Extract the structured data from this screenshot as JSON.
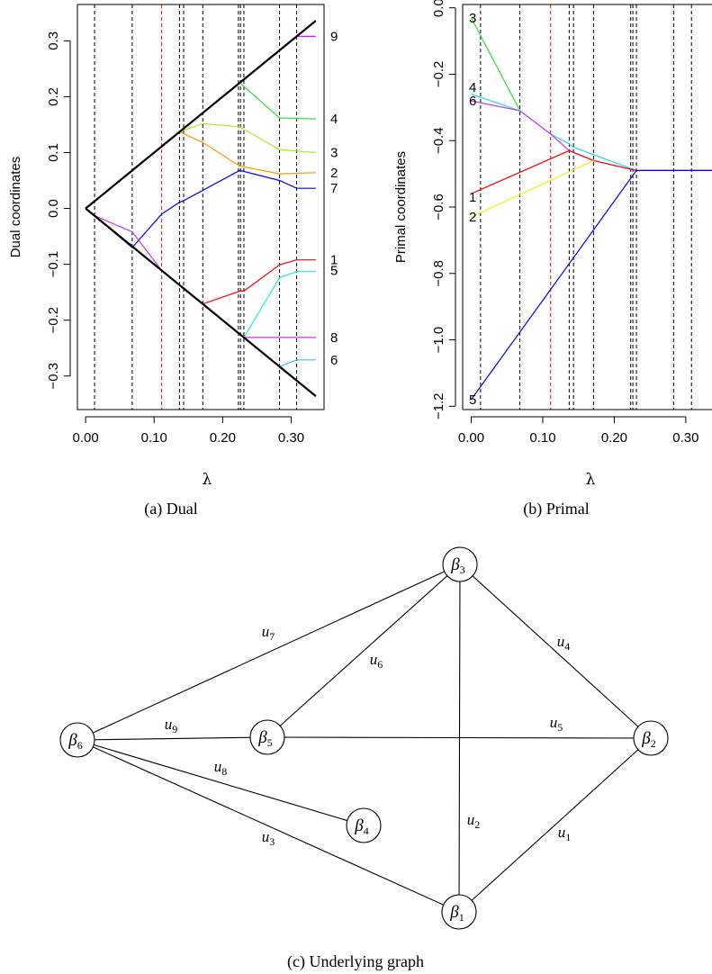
{
  "chart_data": [
    {
      "type": "line",
      "caption": "(a)  Dual",
      "xlabel": "λ",
      "ylabel": "Dual coordinates",
      "xlim": [
        -0.012,
        0.348
      ],
      "ylim": [
        -0.36,
        0.365
      ],
      "xticks": [
        0.0,
        0.1,
        0.2,
        0.3
      ],
      "xtick_labels": [
        "0.00",
        "0.10",
        "0.20",
        "0.30"
      ],
      "yticks": [
        -0.3,
        -0.2,
        -0.1,
        0.0,
        0.1,
        0.2,
        0.3
      ],
      "ytick_labels": [
        "−0.3",
        "−0.2",
        "−0.1",
        "0.0",
        "0.1",
        "0.2",
        "0.3"
      ],
      "vlines": [
        {
          "x": 0.013,
          "color": "#000000"
        },
        {
          "x": 0.068,
          "color": "#000000"
        },
        {
          "x": 0.111,
          "color": "#ff0000"
        },
        {
          "x": 0.137,
          "color": "#000000"
        },
        {
          "x": 0.143,
          "color": "#000000"
        },
        {
          "x": 0.171,
          "color": "#000000"
        },
        {
          "x": 0.223,
          "color": "#000000"
        },
        {
          "x": 0.226,
          "color": "#000000"
        },
        {
          "x": 0.231,
          "color": "#000000"
        },
        {
          "x": 0.283,
          "color": "#000000"
        },
        {
          "x": 0.308,
          "color": "#000000"
        }
      ],
      "series": [
        {
          "label": "9",
          "color": "#ff00ff",
          "x": [
            0,
            0.225,
            0.308,
            0.336
          ],
          "y": [
            0,
            0.225,
            0.308,
            0.308
          ]
        },
        {
          "label": "4",
          "color": "#33dd33",
          "x": [
            0,
            0.225,
            0.283,
            0.336
          ],
          "y": [
            0,
            0.225,
            0.162,
            0.16
          ]
        },
        {
          "label": "3",
          "color": "#aaee22",
          "x": [
            0,
            0.137,
            0.171,
            0.225,
            0.283,
            0.336
          ],
          "y": [
            0,
            0.137,
            0.152,
            0.146,
            0.105,
            0.1
          ]
        },
        {
          "label": "2",
          "color": "#ff9900",
          "x": [
            0,
            0.137,
            0.171,
            0.225,
            0.283,
            0.336
          ],
          "y": [
            0,
            0.137,
            0.118,
            0.076,
            0.062,
            0.064
          ]
        },
        {
          "label": "7",
          "color": "#0000ff",
          "x": [
            0,
            0.068,
            0.111,
            0.137,
            0.143,
            0.225,
            0.283,
            0.308,
            0.336
          ],
          "y": [
            0,
            -0.07,
            -0.01,
            0.011,
            0.014,
            0.068,
            0.05,
            0.036,
            0.036
          ]
        },
        {
          "label": "1",
          "color": "#ff0000",
          "x": [
            0,
            0.171,
            0.225,
            0.231,
            0.283,
            0.308,
            0.336
          ],
          "y": [
            0,
            -0.171,
            -0.148,
            -0.148,
            -0.101,
            -0.092,
            -0.092
          ]
        },
        {
          "label": "5",
          "color": "#22eecc",
          "x": [
            0,
            0.231,
            0.283,
            0.308,
            0.336
          ],
          "y": [
            0,
            -0.231,
            -0.124,
            -0.113,
            -0.113
          ]
        },
        {
          "label": "8",
          "color": "#cc33ff",
          "x": [
            0,
            0.013,
            0.068,
            0.111,
            0.231,
            0.336
          ],
          "y": [
            0,
            -0.013,
            -0.042,
            -0.111,
            -0.231,
            -0.231
          ]
        },
        {
          "label": "6",
          "color": "#33ccdd",
          "x": [
            0,
            0.283,
            0.308,
            0.336
          ],
          "y": [
            0,
            -0.283,
            -0.271,
            -0.271
          ]
        },
        {
          "label": "",
          "color": "#000000",
          "width": 2.2,
          "x": [
            0,
            0.336
          ],
          "y": [
            0,
            0.336
          ]
        },
        {
          "label": "",
          "color": "#000000",
          "width": 2.2,
          "x": [
            0,
            0.336
          ],
          "y": [
            0,
            -0.336
          ]
        }
      ],
      "end_labels": [
        {
          "text": "9",
          "y": 0.308
        },
        {
          "text": "4",
          "y": 0.16
        },
        {
          "text": "3",
          "y": 0.1
        },
        {
          "text": "2",
          "y": 0.064
        },
        {
          "text": "7",
          "y": 0.036
        },
        {
          "text": "1",
          "y": -0.092
        },
        {
          "text": "5",
          "y": -0.111
        },
        {
          "text": "8",
          "y": -0.231
        },
        {
          "text": "6",
          "y": -0.271
        }
      ]
    },
    {
      "type": "line",
      "caption": "(b)  Primal",
      "xlabel": "λ",
      "ylabel": "Primal coordinates",
      "xlim": [
        -0.012,
        0.348
      ],
      "ylim": [
        -1.21,
        0.01
      ],
      "xticks": [
        0.0,
        0.1,
        0.2,
        0.3
      ],
      "xtick_labels": [
        "0.00",
        "0.10",
        "0.20",
        "0.30"
      ],
      "yticks": [
        -1.2,
        -1.0,
        -0.8,
        -0.6,
        -0.4,
        -0.2,
        0.0
      ],
      "ytick_labels": [
        "−1.2",
        "−1.0",
        "−0.8",
        "−0.6",
        "−0.4",
        "−0.2",
        "0.0"
      ],
      "vlines": [
        {
          "x": 0.013,
          "color": "#000000"
        },
        {
          "x": 0.068,
          "color": "#000000"
        },
        {
          "x": 0.111,
          "color": "#ff0000"
        },
        {
          "x": 0.137,
          "color": "#000000"
        },
        {
          "x": 0.143,
          "color": "#000000"
        },
        {
          "x": 0.171,
          "color": "#000000"
        },
        {
          "x": 0.223,
          "color": "#000000"
        },
        {
          "x": 0.226,
          "color": "#000000"
        },
        {
          "x": 0.231,
          "color": "#000000"
        },
        {
          "x": 0.283,
          "color": "#000000"
        },
        {
          "x": 0.308,
          "color": "#000000"
        }
      ],
      "series": [
        {
          "label": "3",
          "color": "#33dd33",
          "x": [
            0,
            0.068
          ],
          "y": [
            -0.03,
            -0.31
          ]
        },
        {
          "label": "4",
          "color": "#22dddd",
          "x": [
            0,
            0.068,
            0.111,
            0.137,
            0.143,
            0.231
          ],
          "y": [
            -0.26,
            -0.31,
            -0.38,
            -0.41,
            -0.42,
            -0.49
          ]
        },
        {
          "label": "6",
          "color": "#cc33ff",
          "x": [
            0,
            0.068,
            0.111,
            0.137,
            0.171,
            0.231,
            0.37
          ],
          "y": [
            -0.28,
            -0.31,
            -0.38,
            -0.43,
            -0.46,
            -0.49,
            -0.49
          ]
        },
        {
          "label": "1",
          "color": "#ff0000",
          "x": [
            0,
            0.137,
            0.171,
            0.231
          ],
          "y": [
            -0.56,
            -0.43,
            -0.46,
            -0.49
          ]
        },
        {
          "label": "2",
          "color": "#eeee22",
          "x": [
            0,
            0.171
          ],
          "y": [
            -0.63,
            -0.46
          ]
        },
        {
          "label": "5",
          "color": "#0000ff",
          "x": [
            0,
            0.231,
            0.37
          ],
          "y": [
            -1.18,
            -0.49,
            -0.49
          ]
        }
      ],
      "start_labels": [
        {
          "text": "3",
          "y": -0.03
        },
        {
          "text": "4",
          "y": -0.24
        },
        {
          "text": "6",
          "y": -0.28
        },
        {
          "text": "1",
          "y": -0.57
        },
        {
          "text": "2",
          "y": -0.63
        },
        {
          "text": "5",
          "y": -1.18
        }
      ]
    }
  ],
  "graph": {
    "caption": "(c)  Underlying graph",
    "nodes": [
      {
        "id": "b3",
        "base": "β",
        "sub": "3"
      },
      {
        "id": "b6",
        "base": "β",
        "sub": "6"
      },
      {
        "id": "b5",
        "base": "β",
        "sub": "5"
      },
      {
        "id": "b2",
        "base": "β",
        "sub": "2"
      },
      {
        "id": "b4",
        "base": "β",
        "sub": "4"
      },
      {
        "id": "b1",
        "base": "β",
        "sub": "1"
      }
    ],
    "edges": [
      {
        "label": "u",
        "sub": "7",
        "from": "b6",
        "to": "b3"
      },
      {
        "label": "u",
        "sub": "6",
        "from": "b5",
        "to": "b3"
      },
      {
        "label": "u",
        "sub": "4",
        "from": "b3",
        "to": "b2"
      },
      {
        "label": "u",
        "sub": "2",
        "from": "b3",
        "to": "b1"
      },
      {
        "label": "u",
        "sub": "9",
        "from": "b6",
        "to": "b5"
      },
      {
        "label": "u",
        "sub": "5",
        "from": "b5",
        "to": "b2"
      },
      {
        "label": "u",
        "sub": "8",
        "from": "b6",
        "to": "b4"
      },
      {
        "label": "u",
        "sub": "3",
        "from": "b6",
        "to": "b1"
      },
      {
        "label": "u",
        "sub": "1",
        "from": "b1",
        "to": "b2"
      }
    ]
  }
}
